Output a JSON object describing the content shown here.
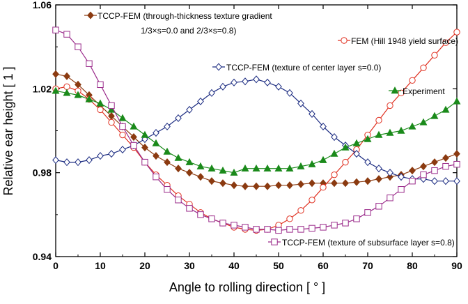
{
  "chart_data": {
    "type": "line",
    "xlabel": "Angle to rolling direction [ ° ]",
    "ylabel": "Relative ear height [ 1 ]",
    "xlim": [
      0,
      90
    ],
    "ylim": [
      0.94,
      1.06
    ],
    "xticks": [
      "0",
      "10",
      "20",
      "30",
      "40",
      "50",
      "60",
      "70",
      "80",
      "90"
    ],
    "yticks": [
      "0.94",
      "0.98",
      "1.02",
      "1.06"
    ],
    "grid": false,
    "series": [
      {
        "name": "TCCP-FEM (through-thickness texture gradient",
        "name_line2": "1/3×s=0.0 and 2/3×s=0.8)",
        "color": "#8b3a10",
        "marker": "diamond-filled",
        "x": [
          0,
          2.5,
          5,
          7.5,
          10,
          12.5,
          15,
          17.5,
          20,
          22.5,
          25,
          27.5,
          30,
          32.5,
          35,
          37.5,
          40,
          42.5,
          45,
          47.5,
          50,
          52.5,
          55,
          57.5,
          60,
          62.5,
          65,
          67.5,
          70,
          72.5,
          75,
          77.5,
          80,
          82.5,
          85,
          87.5,
          90
        ],
        "y": [
          1.027,
          1.026,
          1.022,
          1.017,
          1.012,
          1.007,
          1.002,
          0.997,
          0.992,
          0.988,
          0.985,
          0.982,
          0.98,
          0.978,
          0.976,
          0.975,
          0.974,
          0.9735,
          0.9735,
          0.9735,
          0.974,
          0.974,
          0.9745,
          0.975,
          0.975,
          0.975,
          0.975,
          0.9755,
          0.976,
          0.977,
          0.978,
          0.979,
          0.981,
          0.983,
          0.985,
          0.987,
          0.989
        ]
      },
      {
        "name": "FEM (Hill 1948 yield surface)",
        "color": "#e03020",
        "marker": "circle-open",
        "x": [
          0,
          2.5,
          5,
          7.5,
          10,
          12.5,
          15,
          17.5,
          20,
          22.5,
          25,
          27.5,
          30,
          32.5,
          35,
          37.5,
          40,
          42.5,
          45,
          47.5,
          50,
          52.5,
          55,
          57.5,
          60,
          62.5,
          65,
          67.5,
          70,
          72.5,
          75,
          77.5,
          80,
          82.5,
          85,
          87.5,
          90
        ],
        "y": [
          1.02,
          1.021,
          1.019,
          1.015,
          1.01,
          1.004,
          0.998,
          0.992,
          0.985,
          0.979,
          0.974,
          0.969,
          0.965,
          0.961,
          0.958,
          0.956,
          0.954,
          0.953,
          0.9525,
          0.953,
          0.955,
          0.958,
          0.962,
          0.967,
          0.973,
          0.979,
          0.985,
          0.991,
          0.998,
          1.005,
          1.012,
          1.018,
          1.024,
          1.03,
          1.036,
          1.042,
          1.047
        ]
      },
      {
        "name": "TCCP-FEM (texture of center layer s=0.0)",
        "color": "#1a2a80",
        "marker": "diamond-open",
        "x": [
          0,
          2.5,
          5,
          7.5,
          10,
          12.5,
          15,
          17.5,
          20,
          22.5,
          25,
          27.5,
          30,
          32.5,
          35,
          37.5,
          40,
          42.5,
          45,
          47.5,
          50,
          52.5,
          55,
          57.5,
          60,
          62.5,
          65,
          67.5,
          70,
          72.5,
          75,
          77.5,
          80,
          82.5,
          85,
          87.5,
          90
        ],
        "y": [
          0.986,
          0.985,
          0.985,
          0.986,
          0.988,
          0.989,
          0.991,
          0.993,
          0.996,
          0.999,
          1.002,
          1.006,
          1.01,
          1.014,
          1.018,
          1.021,
          1.023,
          1.0235,
          1.0245,
          1.023,
          1.021,
          1.018,
          1.013,
          1.008,
          1.002,
          0.997,
          0.993,
          0.989,
          0.985,
          0.982,
          0.98,
          0.978,
          0.977,
          0.977,
          0.976,
          0.976,
          0.976
        ]
      },
      {
        "name": "Experiment",
        "color": "#1a8a1a",
        "marker": "triangle-filled",
        "x": [
          0,
          2.5,
          5,
          7.5,
          10,
          12.5,
          15,
          17.5,
          20,
          22.5,
          25,
          27.5,
          30,
          32.5,
          35,
          37.5,
          40,
          42.5,
          45,
          47.5,
          50,
          52.5,
          55,
          57.5,
          60,
          62.5,
          65,
          67.5,
          70,
          72.5,
          75,
          77.5,
          80,
          82.5,
          85,
          87.5,
          90
        ],
        "y": [
          1.019,
          1.018,
          1.017,
          1.015,
          1.013,
          1.01,
          1.006,
          1.002,
          0.998,
          0.994,
          0.99,
          0.987,
          0.985,
          0.983,
          0.982,
          0.981,
          0.98,
          0.982,
          0.982,
          0.982,
          0.982,
          0.982,
          0.983,
          0.984,
          0.986,
          0.989,
          0.992,
          0.994,
          0.996,
          0.998,
          0.999,
          1.0,
          1.002,
          1.004,
          1.007,
          1.01,
          1.014
        ]
      },
      {
        "name": "TCCP-FEM (texture of subsurface layer s=0.8)",
        "color": "#9a2a8a",
        "marker": "square-open",
        "x": [
          0,
          2.5,
          5,
          7.5,
          10,
          12.5,
          15,
          17.5,
          20,
          22.5,
          25,
          27.5,
          30,
          32.5,
          35,
          37.5,
          40,
          42.5,
          45,
          47.5,
          50,
          52.5,
          55,
          57.5,
          60,
          62.5,
          65,
          67.5,
          70,
          72.5,
          75,
          77.5,
          80,
          82.5,
          85,
          87.5,
          90
        ],
        "y": [
          1.048,
          1.046,
          1.04,
          1.032,
          1.022,
          1.012,
          1.002,
          0.993,
          0.985,
          0.978,
          0.972,
          0.967,
          0.963,
          0.96,
          0.958,
          0.956,
          0.955,
          0.954,
          0.953,
          0.953,
          0.9525,
          0.953,
          0.953,
          0.9535,
          0.954,
          0.955,
          0.956,
          0.958,
          0.961,
          0.964,
          0.968,
          0.972,
          0.976,
          0.979,
          0.981,
          0.983,
          0.984
        ]
      }
    ]
  }
}
